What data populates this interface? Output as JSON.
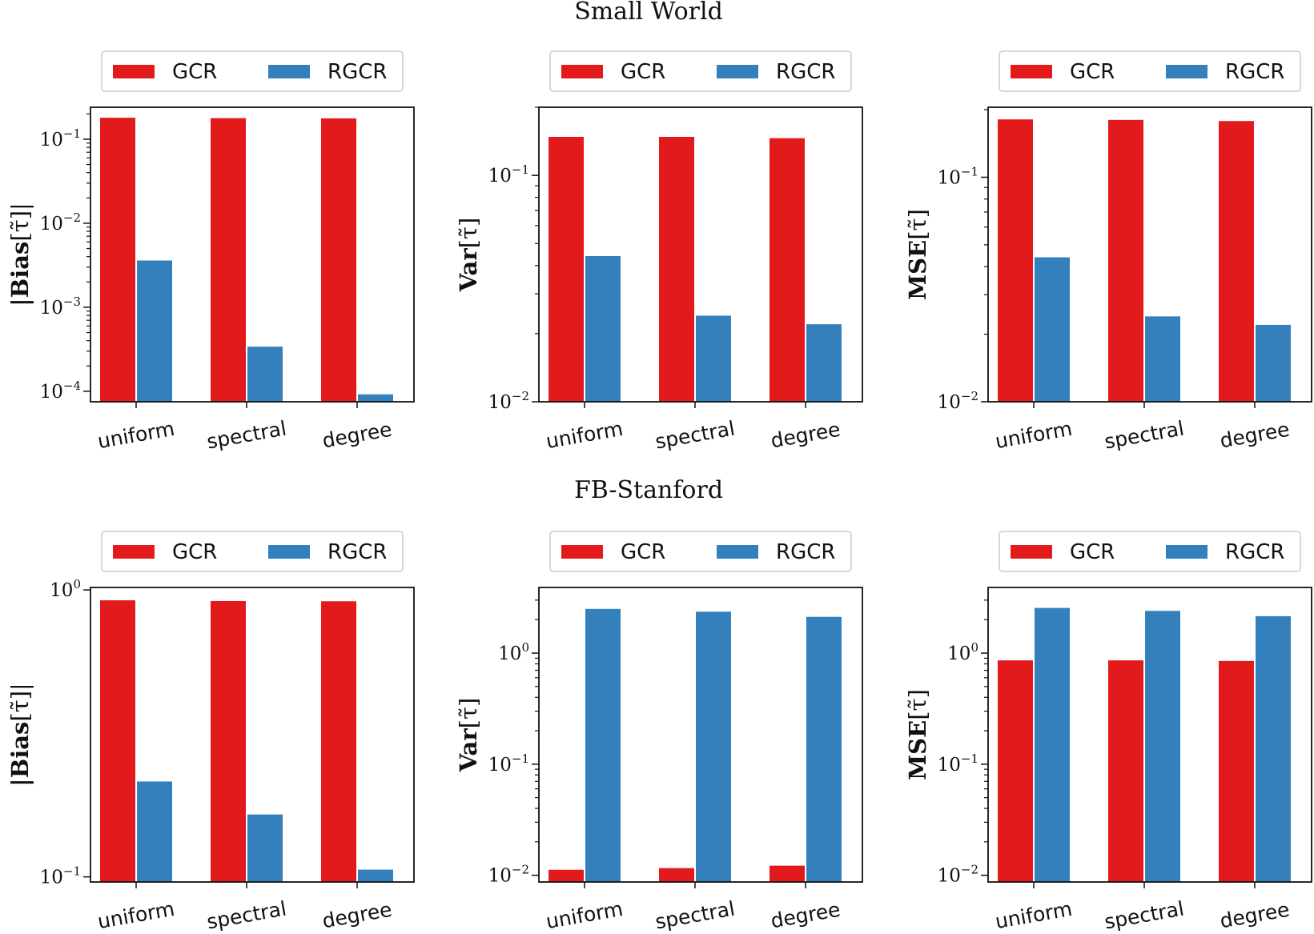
{
  "colors": {
    "GCR": "#e31a1c",
    "RGCR": "#3480bd"
  },
  "row_titles": [
    "Small World",
    "FB-Stanford"
  ],
  "chart_data": [
    {
      "type": "bar",
      "scale": "log",
      "row": 0,
      "col": 0,
      "ylabel": {
        "main": "|Bias",
        "sub": "[τ̃]|"
      },
      "categories": [
        "uniform",
        "spectral",
        "degree"
      ],
      "legend": [
        "GCR",
        "RGCR"
      ],
      "ylim": [
        7.5e-05,
        0.24
      ],
      "ytick_labels": [
        {
          "base": "10",
          "exp": "−4",
          "value": 0.0001
        },
        {
          "base": "10",
          "exp": "−3",
          "value": 0.001
        },
        {
          "base": "10",
          "exp": "−2",
          "value": 0.01
        },
        {
          "base": "10",
          "exp": "−1",
          "value": 0.1
        }
      ],
      "minor_ticks": [
        0.0002,
        0.0003,
        0.0004,
        0.0005,
        0.0006,
        0.0007,
        0.0008,
        0.0009,
        0.002,
        0.003,
        0.004,
        0.005,
        0.006,
        0.007,
        0.008,
        0.009,
        0.02,
        0.03,
        0.04,
        0.05,
        0.06,
        0.07,
        0.08,
        0.09,
        0.2
      ],
      "series": [
        {
          "name": "GCR",
          "values": [
            0.18,
            0.178,
            0.177
          ]
        },
        {
          "name": "RGCR",
          "values": [
            0.0036,
            0.00034,
            9.2e-05
          ]
        }
      ]
    },
    {
      "type": "bar",
      "scale": "log",
      "row": 0,
      "col": 1,
      "ylabel": {
        "main": "Var",
        "sub": "[τ̃]"
      },
      "categories": [
        "uniform",
        "spectral",
        "degree"
      ],
      "legend": [
        "GCR",
        "RGCR"
      ],
      "ylim": [
        0.01,
        0.2
      ],
      "ytick_labels": [
        {
          "base": "10",
          "exp": "−2",
          "value": 0.01
        },
        {
          "base": "10",
          "exp": "−1",
          "value": 0.1
        }
      ],
      "minor_ticks": [
        0.02,
        0.03,
        0.04,
        0.05,
        0.06,
        0.07,
        0.08,
        0.09,
        0.2
      ],
      "series": [
        {
          "name": "GCR",
          "values": [
            0.148,
            0.148,
            0.146
          ]
        },
        {
          "name": "RGCR",
          "values": [
            0.044,
            0.024,
            0.022
          ]
        }
      ]
    },
    {
      "type": "bar",
      "scale": "log",
      "row": 0,
      "col": 2,
      "ylabel": {
        "main": "MSE",
        "sub": "[τ̃]"
      },
      "categories": [
        "uniform",
        "spectral",
        "degree"
      ],
      "legend": [
        "GCR",
        "RGCR"
      ],
      "ylim": [
        0.01,
        0.205
      ],
      "ytick_labels": [
        {
          "base": "10",
          "exp": "−2",
          "value": 0.01
        },
        {
          "base": "10",
          "exp": "−1",
          "value": 0.1
        }
      ],
      "minor_ticks": [
        0.02,
        0.03,
        0.04,
        0.05,
        0.06,
        0.07,
        0.08,
        0.09,
        0.2
      ],
      "series": [
        {
          "name": "GCR",
          "values": [
            0.181,
            0.18,
            0.178
          ]
        },
        {
          "name": "RGCR",
          "values": [
            0.044,
            0.024,
            0.022
          ]
        }
      ]
    },
    {
      "type": "bar",
      "scale": "log",
      "row": 1,
      "col": 0,
      "ylabel": {
        "main": "|Bias",
        "sub": "[τ̃]|"
      },
      "categories": [
        "uniform",
        "spectral",
        "degree"
      ],
      "legend": [
        "GCR",
        "RGCR"
      ],
      "ylim": [
        0.096,
        1.02
      ],
      "ytick_labels": [
        {
          "base": "10",
          "exp": "−1",
          "value": 0.1
        },
        {
          "base": "10",
          "exp": "0",
          "value": 1
        }
      ],
      "minor_ticks": [],
      "series": [
        {
          "name": "GCR",
          "values": [
            0.92,
            0.915,
            0.913
          ]
        },
        {
          "name": "RGCR",
          "values": [
            0.215,
            0.165,
            0.106
          ]
        }
      ]
    },
    {
      "type": "bar",
      "scale": "log",
      "row": 1,
      "col": 1,
      "ylabel": {
        "main": "Var",
        "sub": "[τ̃]"
      },
      "categories": [
        "uniform",
        "spectral",
        "degree"
      ],
      "legend": [
        "GCR",
        "RGCR"
      ],
      "ylim": [
        0.0087,
        3.9
      ],
      "ytick_labels": [
        {
          "base": "10",
          "exp": "−2",
          "value": 0.01
        },
        {
          "base": "10",
          "exp": "−1",
          "value": 0.1
        },
        {
          "base": "10",
          "exp": "0",
          "value": 1
        }
      ],
      "minor_ticks": [
        0.02,
        0.03,
        0.04,
        0.05,
        0.06,
        0.07,
        0.08,
        0.09,
        0.2,
        0.3,
        0.4,
        0.5,
        0.6,
        0.7,
        0.8,
        0.9,
        2,
        3
      ],
      "series": [
        {
          "name": "GCR",
          "values": [
            0.0112,
            0.0116,
            0.0122
          ]
        },
        {
          "name": "RGCR",
          "values": [
            2.5,
            2.36,
            2.12
          ]
        }
      ]
    },
    {
      "type": "bar",
      "scale": "log",
      "row": 1,
      "col": 2,
      "ylabel": {
        "main": "MSE",
        "sub": "[τ̃]"
      },
      "categories": [
        "uniform",
        "spectral",
        "degree"
      ],
      "legend": [
        "GCR",
        "RGCR"
      ],
      "ylim": [
        0.0087,
        3.9
      ],
      "ytick_labels": [
        {
          "base": "10",
          "exp": "−2",
          "value": 0.01
        },
        {
          "base": "10",
          "exp": "−1",
          "value": 0.1
        },
        {
          "base": "10",
          "exp": "0",
          "value": 1
        }
      ],
      "minor_ticks": [
        0.02,
        0.03,
        0.04,
        0.05,
        0.06,
        0.07,
        0.08,
        0.09,
        0.2,
        0.3,
        0.4,
        0.5,
        0.6,
        0.7,
        0.8,
        0.9,
        2,
        3
      ],
      "series": [
        {
          "name": "GCR",
          "values": [
            0.86,
            0.86,
            0.85
          ]
        },
        {
          "name": "RGCR",
          "values": [
            2.55,
            2.4,
            2.15
          ]
        }
      ]
    }
  ]
}
